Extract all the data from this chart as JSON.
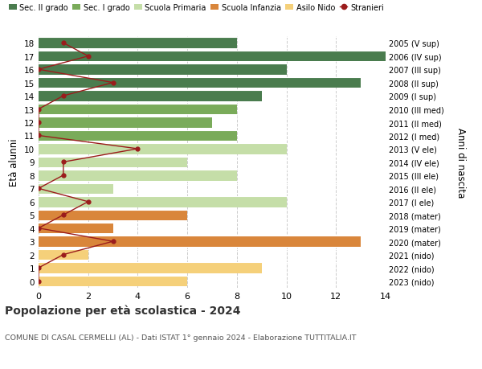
{
  "ages": [
    18,
    17,
    16,
    15,
    14,
    13,
    12,
    11,
    10,
    9,
    8,
    7,
    6,
    5,
    4,
    3,
    2,
    1,
    0
  ],
  "right_labels": [
    "2005 (V sup)",
    "2006 (IV sup)",
    "2007 (III sup)",
    "2008 (II sup)",
    "2009 (I sup)",
    "2010 (III med)",
    "2011 (II med)",
    "2012 (I med)",
    "2013 (V ele)",
    "2014 (IV ele)",
    "2015 (III ele)",
    "2016 (II ele)",
    "2017 (I ele)",
    "2018 (mater)",
    "2019 (mater)",
    "2020 (mater)",
    "2021 (nido)",
    "2022 (nido)",
    "2023 (nido)"
  ],
  "bar_values": [
    8,
    14,
    10,
    13,
    9,
    8,
    7,
    8,
    10,
    6,
    8,
    3,
    10,
    6,
    3,
    13,
    2,
    9,
    6
  ],
  "bar_colors": [
    "#4a7c4e",
    "#4a7c4e",
    "#4a7c4e",
    "#4a7c4e",
    "#4a7c4e",
    "#7aab5a",
    "#7aab5a",
    "#7aab5a",
    "#c5dea8",
    "#c5dea8",
    "#c5dea8",
    "#c5dea8",
    "#c5dea8",
    "#d9863b",
    "#d9863b",
    "#d9863b",
    "#f5d07a",
    "#f5d07a",
    "#f5d07a"
  ],
  "stranieri_values": [
    1,
    2,
    0,
    3,
    1,
    0,
    0,
    0,
    4,
    1,
    1,
    0,
    2,
    1,
    0,
    3,
    1,
    0,
    0
  ],
  "legend_labels": [
    "Sec. II grado",
    "Sec. I grado",
    "Scuola Primaria",
    "Scuola Infanzia",
    "Asilo Nido",
    "Stranieri"
  ],
  "legend_colors": [
    "#4a7c4e",
    "#7aab5a",
    "#c5dea8",
    "#d9863b",
    "#f5d07a",
    "#9b1c1c"
  ],
  "title": "Popolazione per età scolastica - 2024",
  "subtitle": "COMUNE DI CASAL CERMELLI (AL) - Dati ISTAT 1° gennaio 2024 - Elaborazione TUTTITALIA.IT",
  "ylabel_left": "Età alunni",
  "ylabel_right": "Anni di nascita",
  "xlim": [
    0,
    14
  ],
  "background_color": "#ffffff",
  "grid_color": "#cccccc"
}
